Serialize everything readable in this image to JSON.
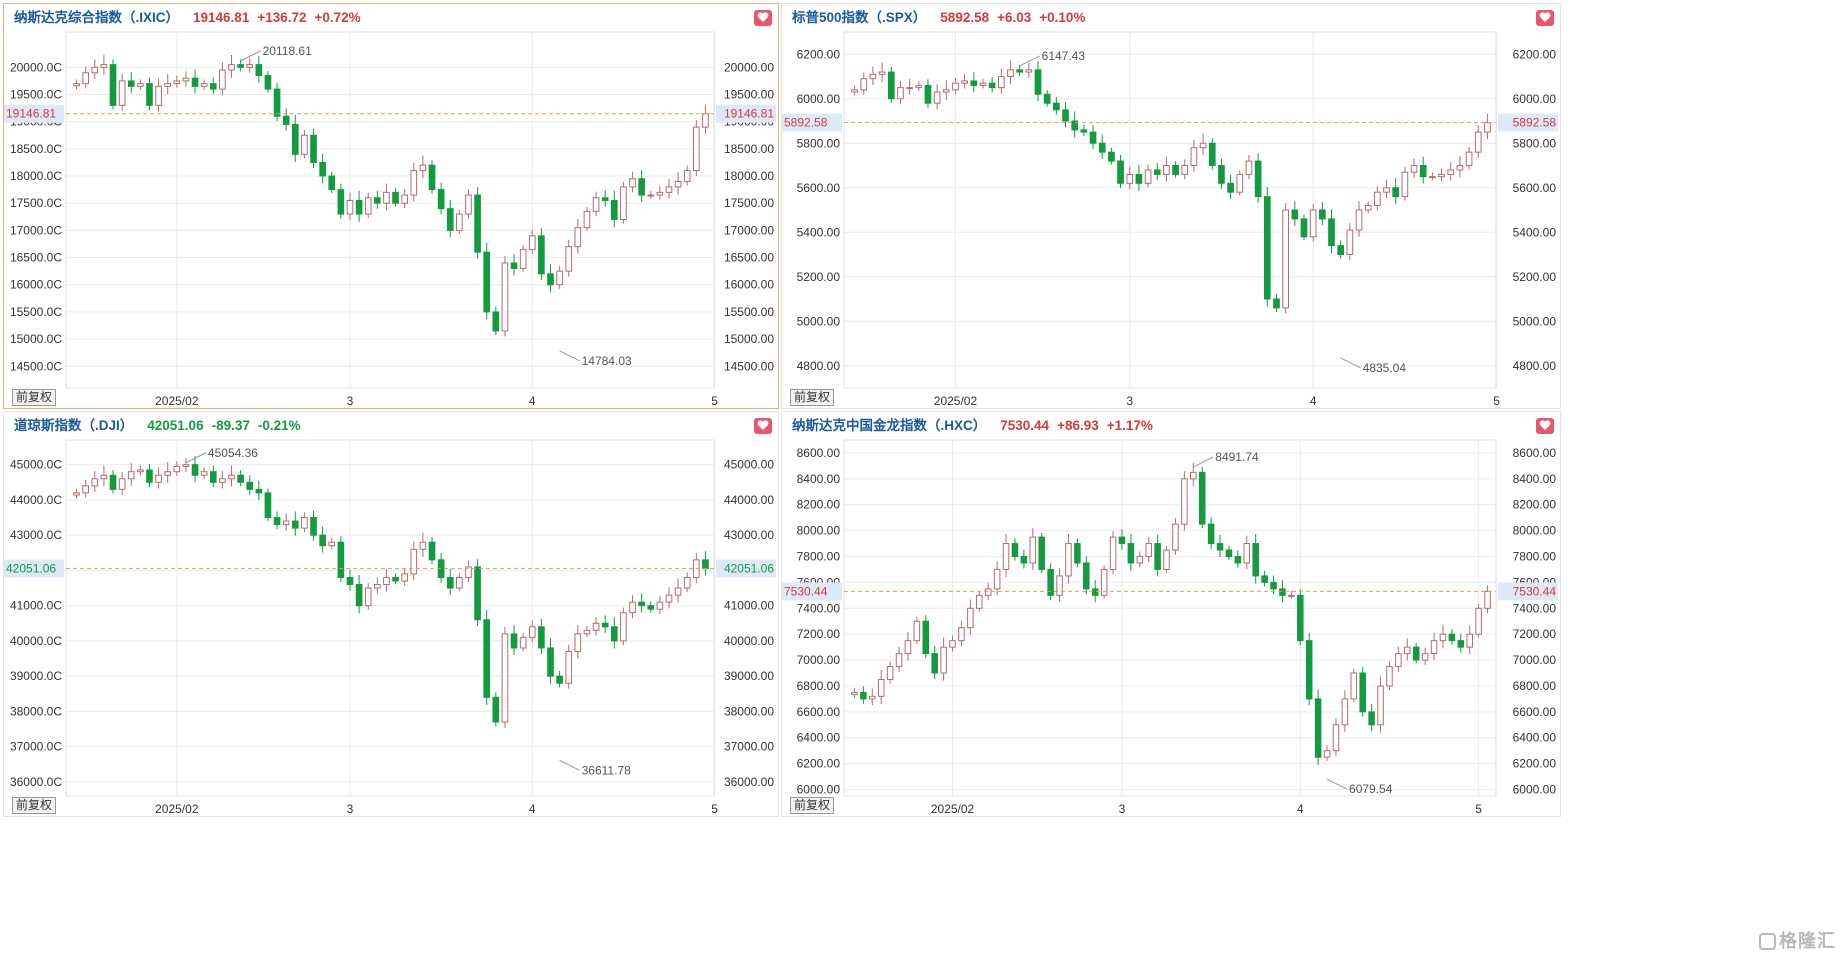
{
  "panels": [
    {
      "id": "ixic",
      "name": "纳斯达克综合指数（.IXIC）",
      "last": "19146.81",
      "change": "+136.72",
      "pct": "+0.72%",
      "direction": "up",
      "active": true,
      "adjust_label": "前复权",
      "chart_data": {
        "type": "candlestick",
        "ylim": [
          14100,
          20650
        ],
        "y_ticks": [
          14500,
          15000,
          15500,
          16000,
          16500,
          17000,
          17500,
          18000,
          18500,
          19000,
          19500,
          20000
        ],
        "y_tick_labels": [
          "14500.0C",
          "15000.0C",
          "15500.0C",
          "16000.0C",
          "16500.0C",
          "17000.0C",
          "17500.0C",
          "18000.0C",
          "18500.0C",
          "19000.0C",
          "19500.0C",
          "20000.0C"
        ],
        "y_tick_labels_right": [
          "14500.00",
          "15000.00",
          "15500.00",
          "16000.00",
          "16500.00",
          "17000.00",
          "17500.00",
          "18000.00",
          "18500.00",
          "19000.00",
          "19500.00",
          "20000.00"
        ],
        "x_labels": [
          {
            "i": 11,
            "label": "2025/02"
          },
          {
            "i": 30,
            "label": "3"
          },
          {
            "i": 50,
            "label": "4"
          },
          {
            "i": 70,
            "label": "5"
          }
        ],
        "last_price": 19146.81,
        "last_label": "19146.81",
        "high": {
          "i": 18,
          "value": 20118.61,
          "label": "20118.61"
        },
        "low": {
          "i": 53,
          "value": 14784.03,
          "label": "14784.03"
        },
        "path": [
          19700,
          19900,
          20000,
          20050,
          19300,
          19750,
          19650,
          19700,
          19300,
          19650,
          19700,
          19750,
          19800,
          19650,
          19700,
          19600,
          19950,
          20050,
          20000,
          20050,
          19850,
          19600,
          19100,
          18950,
          18400,
          18750,
          18250,
          18000,
          17750,
          17300,
          17550,
          17300,
          17600,
          17500,
          17700,
          17500,
          17650,
          18100,
          18200,
          17750,
          17400,
          17000,
          17300,
          17650,
          16600,
          15500,
          15150,
          16400,
          16300,
          16650,
          16900,
          16200,
          16000,
          16250,
          16700,
          17050,
          17350,
          17600,
          17550,
          17200,
          17800,
          17950,
          17650,
          17650,
          17700,
          17800,
          17900,
          18100,
          18900,
          19146.81
        ]
      }
    },
    {
      "id": "spx",
      "name": "标普500指数（.SPX）",
      "last": "5892.58",
      "change": "+6.03",
      "pct": "+0.10%",
      "direction": "up",
      "active": false,
      "adjust_label": "前复权",
      "chart_data": {
        "type": "candlestick",
        "ylim": [
          4700,
          6300
        ],
        "y_ticks": [
          4800,
          5000,
          5200,
          5400,
          5600,
          5800,
          6000,
          6200
        ],
        "y_tick_labels": [
          "4800.00",
          "5000.00",
          "5200.00",
          "5400.00",
          "5600.00",
          "5800.00",
          "6000.00",
          "6200.00"
        ],
        "y_tick_labels_right": [
          "4800.00",
          "5000.00",
          "5200.00",
          "5400.00",
          "5600.00",
          "5800.00",
          "6000.00",
          "6200.00"
        ],
        "x_labels": [
          {
            "i": 11,
            "label": "2025/02"
          },
          {
            "i": 30,
            "label": "3"
          },
          {
            "i": 50,
            "label": "4"
          },
          {
            "i": 70,
            "label": "5"
          }
        ],
        "last_price": 5892.58,
        "last_label": "5892.58",
        "high": {
          "i": 18,
          "value": 6147.43,
          "label": "6147.43"
        },
        "low": {
          "i": 53,
          "value": 4835.04,
          "label": "4835.04"
        },
        "path": [
          6040,
          6090,
          6110,
          6120,
          6000,
          6050,
          6050,
          6060,
          5980,
          6030,
          6040,
          6070,
          6080,
          6060,
          6070,
          6050,
          6100,
          6130,
          6120,
          6130,
          6020,
          5980,
          5950,
          5900,
          5860,
          5850,
          5800,
          5760,
          5720,
          5620,
          5660,
          5620,
          5680,
          5660,
          5700,
          5660,
          5700,
          5780,
          5800,
          5700,
          5620,
          5580,
          5660,
          5720,
          5560,
          5100,
          5060,
          5500,
          5460,
          5380,
          5500,
          5460,
          5340,
          5300,
          5410,
          5500,
          5520,
          5580,
          5600,
          5560,
          5670,
          5700,
          5650,
          5650,
          5660,
          5680,
          5700,
          5760,
          5850,
          5892.58
        ]
      }
    },
    {
      "id": "dji",
      "name": "道琼斯指数（.DJI）",
      "last": "42051.06",
      "change": "-89.37",
      "pct": "-0.21%",
      "direction": "down",
      "active": false,
      "adjust_label": "前复权",
      "chart_data": {
        "type": "candlestick",
        "ylim": [
          35600,
          45700
        ],
        "y_ticks": [
          36000,
          37000,
          38000,
          39000,
          40000,
          41000,
          42000,
          43000,
          44000,
          45000
        ],
        "y_tick_labels": [
          "36000.0C",
          "37000.0C",
          "38000.0C",
          "39000.0C",
          "40000.0C",
          "41000.0C",
          "42000.0C",
          "43000.0C",
          "44000.0C",
          "45000.0C"
        ],
        "y_tick_labels_right": [
          "36000.00",
          "37000.00",
          "38000.00",
          "39000.00",
          "40000.00",
          "41000.00",
          "42000.00",
          "43000.00",
          "44000.00",
          "45000.00"
        ],
        "x_labels": [
          {
            "i": 11,
            "label": "2025/02"
          },
          {
            "i": 30,
            "label": "3"
          },
          {
            "i": 50,
            "label": "4"
          },
          {
            "i": 70,
            "label": "5"
          }
        ],
        "last_price": 42051.06,
        "last_label": "42051.06",
        "high": {
          "i": 12,
          "value": 45054.36,
          "label": "45054.36"
        },
        "low": {
          "i": 53,
          "value": 36611.78,
          "label": "36611.78"
        },
        "path": [
          44200,
          44400,
          44600,
          44700,
          44300,
          44600,
          44800,
          44850,
          44500,
          44700,
          44800,
          44950,
          45000,
          44700,
          44800,
          44500,
          44600,
          44700,
          44500,
          44300,
          44200,
          43500,
          43300,
          43400,
          43200,
          43500,
          43000,
          42700,
          42800,
          41800,
          41600,
          41000,
          41500,
          41600,
          41800,
          41700,
          41900,
          42600,
          42800,
          42300,
          41800,
          41500,
          41800,
          42100,
          40600,
          38400,
          37700,
          40200,
          39800,
          40100,
          40400,
          39800,
          39000,
          38800,
          39700,
          40200,
          40300,
          40500,
          40400,
          40000,
          40800,
          41100,
          41000,
          40900,
          41100,
          41300,
          41500,
          41800,
          42300,
          42051.06
        ]
      }
    },
    {
      "id": "hxc",
      "name": "纳斯达克中国金龙指数（.HXC）",
      "last": "7530.44",
      "change": "+86.93",
      "pct": "+1.17%",
      "direction": "up",
      "active": false,
      "adjust_label": "前复权",
      "chart_data": {
        "type": "candlestick",
        "ylim": [
          5950,
          8700
        ],
        "y_ticks": [
          6000,
          6200,
          6400,
          6600,
          6800,
          7000,
          7200,
          7400,
          7600,
          7800,
          8000,
          8200,
          8400,
          8600
        ],
        "y_tick_labels": [
          "6000.00",
          "6200.00",
          "6400.00",
          "6600.00",
          "6800.00",
          "7000.00",
          "7200.00",
          "7400.00",
          "7600.00",
          "7800.00",
          "8000.00",
          "8200.00",
          "8400.00",
          "8600.00"
        ],
        "y_tick_labels_right": [
          "6000.00",
          "6200.00",
          "6400.00",
          "6600.00",
          "6800.00",
          "7000.00",
          "7200.00",
          "7400.00",
          "7600.00",
          "7800.00",
          "8000.00",
          "8200.00",
          "8400.00",
          "8600.00"
        ],
        "x_labels": [
          {
            "i": 11,
            "label": "2025/02"
          },
          {
            "i": 30,
            "label": "3"
          },
          {
            "i": 50,
            "label": "4"
          },
          {
            "i": 70,
            "label": "5"
          }
        ],
        "last_price": 7530.44,
        "last_label": "7530.44",
        "high": {
          "i": 38,
          "value": 8491.74,
          "label": "8491.74"
        },
        "low": {
          "i": 53,
          "value": 6079.54,
          "label": "6079.54"
        },
        "path": [
          6750,
          6700,
          6720,
          6850,
          6950,
          7050,
          7150,
          7300,
          7050,
          6900,
          7100,
          7150,
          7250,
          7400,
          7500,
          7550,
          7700,
          7900,
          7800,
          7750,
          7950,
          7700,
          7500,
          7650,
          7900,
          7750,
          7550,
          7500,
          7700,
          7950,
          7900,
          7750,
          7800,
          7900,
          7700,
          7850,
          8050,
          8400,
          8450,
          8050,
          7900,
          7850,
          7800,
          7750,
          7900,
          7650,
          7600,
          7550,
          7500,
          7500,
          7150,
          6700,
          6250,
          6300,
          6500,
          6700,
          6900,
          6600,
          6500,
          6800,
          6950,
          7050,
          7100,
          7000,
          7050,
          7150,
          7200,
          7150,
          7100,
          7200,
          7400,
          7530.44
        ]
      }
    }
  ],
  "watermark": "格隆汇"
}
